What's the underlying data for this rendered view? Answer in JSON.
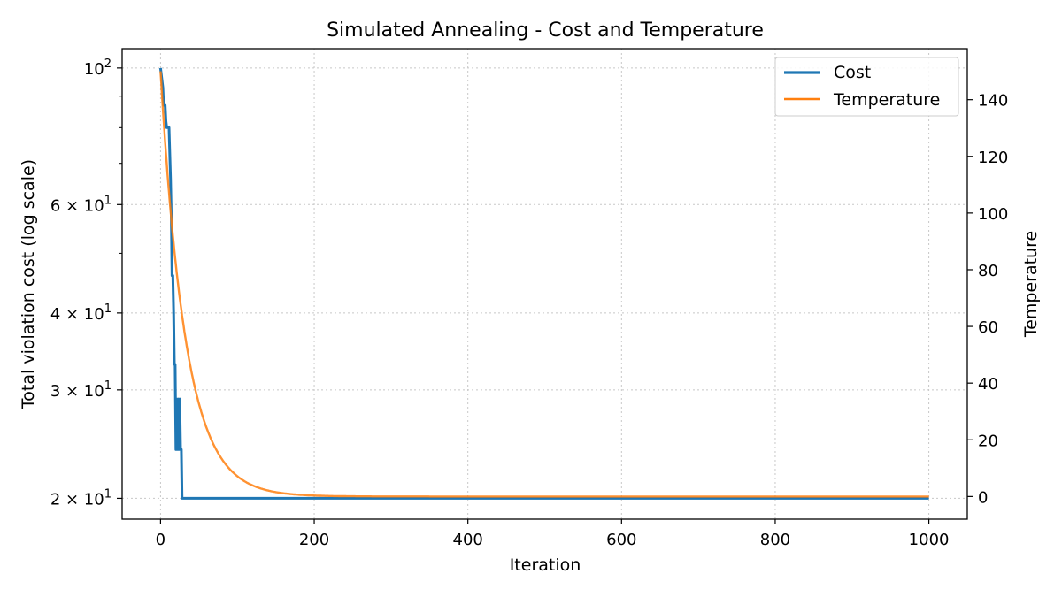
{
  "chart_data": {
    "type": "line",
    "title": "Simulated Annealing - Cost and Temperature",
    "xlabel": "Iteration",
    "ylabel_left": "Total violation cost (log scale)",
    "ylabel_right": "Temperature",
    "x_ticks": [
      "0",
      "200",
      "400",
      "600",
      "800",
      "1000"
    ],
    "y_left_ticks": [
      {
        "value": 100,
        "base": "10",
        "exp": "2"
      },
      {
        "value": 60,
        "base": "6 × 10",
        "exp": "1"
      },
      {
        "value": 40,
        "base": "4 × 10",
        "exp": "1"
      },
      {
        "value": 30,
        "base": "3 × 10",
        "exp": "1"
      },
      {
        "value": 20,
        "base": "2 × 10",
        "exp": "1"
      }
    ],
    "y_left_minor_ticks": [
      50,
      70,
      80,
      90
    ],
    "y_right_ticks": [
      "0",
      "20",
      "40",
      "60",
      "80",
      "100",
      "120",
      "140"
    ],
    "xlim": [
      -50,
      1050
    ],
    "ylim_left": [
      18.5,
      107.5
    ],
    "ylim_right": [
      -8,
      158
    ],
    "y_left_scale": "log",
    "grid": true,
    "legend_position": "top-right",
    "series": [
      {
        "name": "Cost",
        "axis": "left",
        "color": "#1f77b4",
        "x": [
          0,
          3,
          4,
          6,
          7,
          8,
          9,
          10,
          11,
          12,
          13,
          14,
          15,
          16,
          17,
          18,
          19,
          20,
          21,
          22,
          23,
          24,
          25,
          26,
          27,
          28,
          29,
          30,
          1000
        ],
        "y": [
          100,
          93,
          87,
          87,
          82,
          80,
          80,
          80,
          80,
          73,
          66,
          57,
          46,
          46,
          40,
          33,
          33,
          24,
          29,
          24,
          29,
          24,
          29,
          24,
          24,
          20,
          20,
          20,
          20
        ]
      },
      {
        "name": "Temperature",
        "axis": "right",
        "color": "#ff7f0e",
        "model": "exponential",
        "initial": 150,
        "decay_per_iteration": 0.97,
        "x_range": [
          0,
          1000
        ]
      }
    ]
  }
}
